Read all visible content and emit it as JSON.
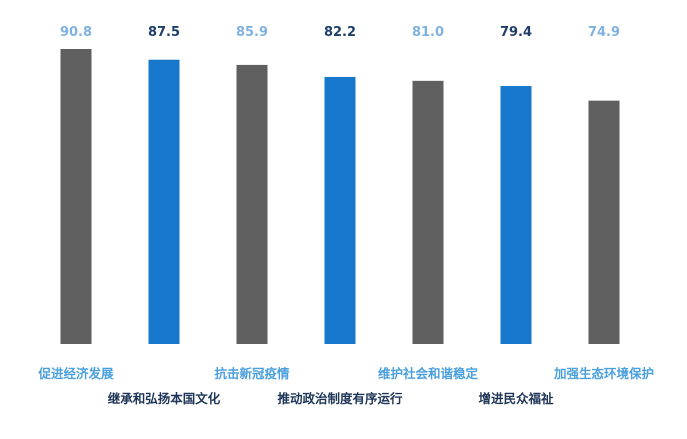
{
  "chart_data": {
    "type": "bar",
    "title": "",
    "xlabel": "",
    "ylabel": "",
    "categories": [
      "促进经济发展",
      "继承和弘扬本国文化",
      "抗击新冠疫情",
      "推动政治制度有序运行",
      "维护社会和谐稳定",
      "增进民众福祉",
      "加强生态环境保护"
    ],
    "values": [
      90.8,
      87.5,
      85.9,
      82.2,
      81.0,
      79.4,
      74.9
    ],
    "value_labels": [
      "90.8",
      "87.5",
      "85.9",
      "82.2",
      "81.0",
      "79.4",
      "74.9"
    ],
    "ylim": [
      0,
      90.8
    ],
    "grid": false,
    "legend": "none",
    "colors": {
      "bar_gray": "#5f5f5f",
      "bar_blue": "#1777cc",
      "label_light": "#4a9fdd",
      "label_dark": "#1f3558",
      "value_light": "#7fb2e0",
      "value_dark": "#1f3f6a"
    }
  }
}
